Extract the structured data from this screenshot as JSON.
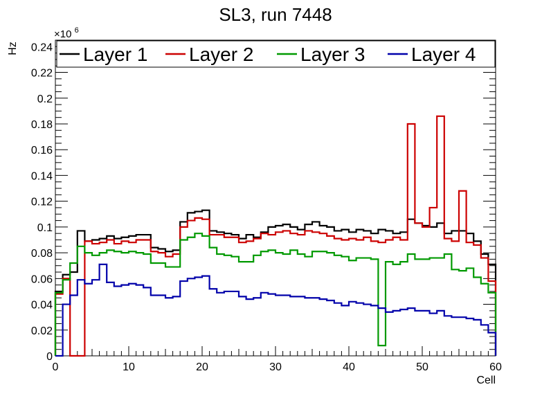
{
  "chart_data": {
    "type": "step-histogram",
    "title": "SL3, run 7448",
    "xlabel": "Cell",
    "ylabel": "Hz",
    "y_exponent": "×10^6",
    "y_exponent_base": "×10",
    "y_exponent_power": "6",
    "xlim": [
      0,
      60
    ],
    "ylim": [
      0,
      0.245
    ],
    "x_ticks": [
      0,
      10,
      20,
      30,
      40,
      50,
      60
    ],
    "x_tick_labels": [
      "0",
      "10",
      "20",
      "30",
      "40",
      "50",
      "60"
    ],
    "y_ticks": [
      0,
      0.02,
      0.04,
      0.06,
      0.08,
      0.1,
      0.12,
      0.14,
      0.16,
      0.18,
      0.2,
      0.22,
      0.24
    ],
    "y_tick_labels": [
      "0",
      "0.02",
      "0.04",
      "0.06",
      "0.08",
      "0.1",
      "0.12",
      "0.14",
      "0.16",
      "0.18",
      "0.2",
      "0.22",
      "0.24"
    ],
    "legend_position": "top",
    "series": [
      {
        "name": "Layer 1",
        "color": "#000000",
        "values": [
          0.05,
          0.063,
          0.065,
          0.097,
          0.089,
          0.09,
          0.091,
          0.093,
          0.091,
          0.092,
          0.093,
          0.094,
          0.094,
          0.084,
          0.083,
          0.081,
          0.082,
          0.104,
          0.111,
          0.112,
          0.113,
          0.097,
          0.096,
          0.095,
          0.094,
          0.091,
          0.094,
          0.092,
          0.096,
          0.1,
          0.101,
          0.102,
          0.1,
          0.098,
          0.102,
          0.104,
          0.101,
          0.1,
          0.097,
          0.098,
          0.096,
          0.098,
          0.097,
          0.095,
          0.098,
          0.097,
          0.095,
          0.096,
          0.106,
          0.103,
          0.101,
          0.1,
          0.103,
          0.095,
          0.097,
          0.097,
          0.095,
          0.089,
          0.079,
          0.071
        ]
      },
      {
        "name": "Layer 2",
        "color": "#cc0000",
        "values": [
          0.048,
          0.06,
          0.0,
          0.0,
          0.089,
          0.087,
          0.088,
          0.09,
          0.087,
          0.089,
          0.088,
          0.09,
          0.09,
          0.081,
          0.08,
          0.077,
          0.079,
          0.1,
          0.105,
          0.107,
          0.106,
          0.094,
          0.094,
          0.092,
          0.092,
          0.088,
          0.089,
          0.091,
          0.095,
          0.094,
          0.096,
          0.097,
          0.095,
          0.094,
          0.097,
          0.096,
          0.095,
          0.093,
          0.091,
          0.09,
          0.091,
          0.09,
          0.092,
          0.089,
          0.088,
          0.09,
          0.092,
          0.09,
          0.18,
          0.103,
          0.1,
          0.115,
          0.186,
          0.091,
          0.089,
          0.128,
          0.088,
          0.086,
          0.076,
          0.058
        ]
      },
      {
        "name": "Layer 3",
        "color": "#009900",
        "values": [
          0.049,
          0.059,
          0.072,
          0.085,
          0.08,
          0.078,
          0.08,
          0.082,
          0.081,
          0.08,
          0.081,
          0.08,
          0.079,
          0.072,
          0.072,
          0.069,
          0.069,
          0.09,
          0.092,
          0.095,
          0.093,
          0.084,
          0.079,
          0.078,
          0.077,
          0.073,
          0.073,
          0.078,
          0.081,
          0.082,
          0.08,
          0.079,
          0.082,
          0.079,
          0.077,
          0.081,
          0.081,
          0.08,
          0.078,
          0.077,
          0.074,
          0.076,
          0.076,
          0.075,
          0.008,
          0.073,
          0.071,
          0.073,
          0.079,
          0.075,
          0.075,
          0.076,
          0.076,
          0.079,
          0.067,
          0.066,
          0.068,
          0.061,
          0.056,
          0.049
        ]
      },
      {
        "name": "Layer 4",
        "color": "#0000aa",
        "values": [
          0.0,
          0.04,
          0.047,
          0.059,
          0.056,
          0.059,
          0.071,
          0.057,
          0.054,
          0.055,
          0.056,
          0.055,
          0.053,
          0.047,
          0.047,
          0.045,
          0.046,
          0.058,
          0.06,
          0.061,
          0.062,
          0.052,
          0.049,
          0.05,
          0.05,
          0.046,
          0.044,
          0.045,
          0.049,
          0.048,
          0.047,
          0.047,
          0.046,
          0.046,
          0.045,
          0.045,
          0.044,
          0.043,
          0.041,
          0.039,
          0.042,
          0.041,
          0.04,
          0.039,
          0.037,
          0.034,
          0.035,
          0.036,
          0.037,
          0.035,
          0.035,
          0.033,
          0.035,
          0.031,
          0.03,
          0.03,
          0.029,
          0.028,
          0.024,
          0.018
        ]
      }
    ]
  }
}
